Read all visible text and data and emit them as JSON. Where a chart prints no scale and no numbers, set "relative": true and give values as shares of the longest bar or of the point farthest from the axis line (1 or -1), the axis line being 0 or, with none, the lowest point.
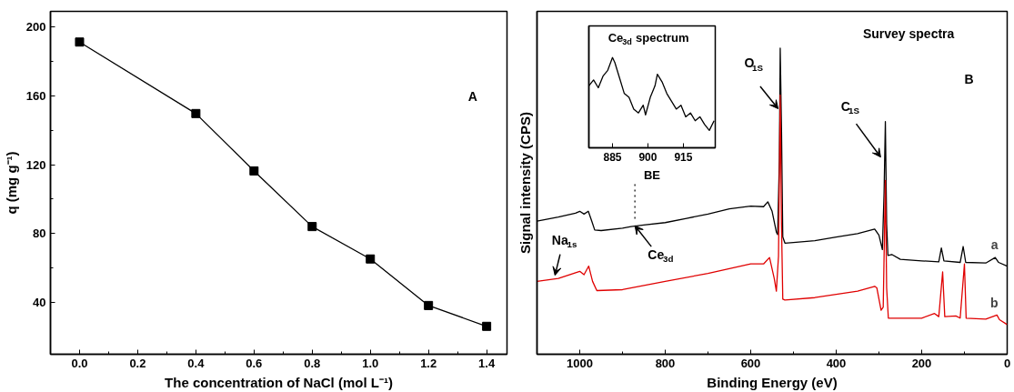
{
  "chart_data": [
    {
      "type": "line",
      "xlabel": "The concentration of NaCl (mol L⁻¹)",
      "ylabel": "q (mg g⁻¹)",
      "x": [
        0,
        0.4,
        0.6,
        0.8,
        1.0,
        1.2,
        1.4
      ],
      "marker": "square",
      "series": [
        {
          "color": "#000000",
          "values": [
            191.2,
            149.7,
            116.4,
            84.1,
            65.3,
            38.3,
            26.2
          ]
        }
      ],
      "xlim": [
        -0.1,
        1.47
      ],
      "ylim": [
        10,
        209
      ],
      "xticks": [
        {
          "value": 0,
          "label": "0.0"
        },
        {
          "value": 0.2,
          "label": "0.2"
        },
        {
          "value": 0.4,
          "label": "0.4"
        },
        {
          "value": 0.6,
          "label": "0.6"
        },
        {
          "value": 0.8,
          "label": "0.8"
        },
        {
          "value": 1.0,
          "label": "1.0"
        },
        {
          "value": 1.2,
          "label": "1.2"
        },
        {
          "value": 1.4,
          "label": "1.4"
        }
      ],
      "yticks": [
        40,
        80,
        120,
        160,
        200
      ],
      "annotations": [
        "A"
      ]
    },
    {
      "type": "line",
      "relative": true,
      "xlabel": "Binding Energy (eV)",
      "ylabel": "Signal intensity (CPS)",
      "xlim": [
        1100,
        0
      ],
      "xticks": [
        1000,
        800,
        600,
        400,
        200,
        0
      ],
      "series": [
        {
          "name": "a",
          "color": "#000000",
          "x": [
            1100,
            1050,
            1010,
            1000,
            990,
            980,
            972,
            965,
            950,
            900,
            880,
            850,
            800,
            750,
            700,
            650,
            600,
            570,
            560,
            550,
            540,
            537,
            533,
            531,
            528,
            525,
            520,
            500,
            450,
            400,
            350,
            310,
            300,
            292,
            288,
            285,
            282,
            279,
            270,
            250,
            200,
            160,
            154,
            148,
            110,
            103,
            97,
            50,
            28,
            20,
            0
          ],
          "values": [
            0.435,
            0.448,
            0.461,
            0.467,
            0.458,
            0.467,
            0.435,
            0.406,
            0.404,
            0.412,
            0.417,
            0.422,
            0.43,
            0.444,
            0.458,
            0.475,
            0.484,
            0.482,
            0.498,
            0.467,
            0.399,
            0.391,
            0.634,
            1.0,
            0.737,
            0.383,
            0.363,
            0.365,
            0.371,
            0.383,
            0.394,
            0.409,
            0.389,
            0.342,
            0.529,
            0.76,
            0.425,
            0.323,
            0.326,
            0.31,
            0.305,
            0.302,
            0.347,
            0.305,
            0.3,
            0.352,
            0.3,
            0.298,
            0.316,
            0.3,
            0.288
          ]
        },
        {
          "name": "b",
          "color": "#e00000",
          "x": [
            1100,
            1050,
            1000,
            990,
            979,
            970,
            960,
            900,
            800,
            700,
            600,
            570,
            556,
            545,
            540,
            535,
            531,
            528,
            525,
            520,
            450,
            350,
            310,
            305,
            295,
            290,
            285,
            282,
            278,
            250,
            200,
            170,
            160,
            151,
            146,
            120,
            110,
            100,
            96,
            50,
            24,
            18,
            0
          ],
          "values": [
            0.238,
            0.248,
            0.271,
            0.26,
            0.288,
            0.238,
            0.208,
            0.211,
            0.238,
            0.264,
            0.295,
            0.295,
            0.316,
            0.248,
            0.206,
            0.321,
            0.847,
            0.425,
            0.18,
            0.177,
            0.185,
            0.206,
            0.222,
            0.217,
            0.144,
            0.154,
            0.568,
            0.217,
            0.118,
            0.118,
            0.118,
            0.133,
            0.123,
            0.269,
            0.123,
            0.125,
            0.118,
            0.295,
            0.118,
            0.115,
            0.128,
            0.113,
            0.097
          ]
        }
      ],
      "annotations": [
        "Survey spectra",
        "B",
        {
          "text": "Na$_{1s}$",
          "x": 1058,
          "y": 0.258
        },
        {
          "text": "Ce$_{3d}$",
          "x": 871,
          "y": 0.42
        },
        {
          "text": "O$_{1S}$",
          "x": 536,
          "y": 0.802
        },
        {
          "text": "C$_{1S}$",
          "x": 296,
          "y": 0.644
        }
      ]
    },
    {
      "type": "line",
      "relative": true,
      "title": "Ce$_{3d}$ spectrum",
      "xlabel": "BE",
      "xlim": [
        875,
        928.5
      ],
      "xticks": [
        885,
        900,
        915
      ],
      "series": [
        {
          "color": "#000000",
          "x": [
            875,
            877,
            879,
            881,
            883,
            885,
            886,
            888,
            890,
            892,
            894,
            896,
            898,
            899,
            901,
            903,
            904,
            906,
            908,
            910,
            912,
            914,
            916,
            918,
            920,
            922,
            924,
            926,
            928
          ],
          "values": [
            0.687,
            0.751,
            0.665,
            0.794,
            0.858,
            1.0,
            0.944,
            0.773,
            0.601,
            0.558,
            0.429,
            0.386,
            0.472,
            0.365,
            0.558,
            0.687,
            0.815,
            0.73,
            0.601,
            0.515,
            0.429,
            0.472,
            0.343,
            0.386,
            0.3,
            0.343,
            0.258,
            0.193,
            0.3
          ]
        }
      ]
    }
  ]
}
